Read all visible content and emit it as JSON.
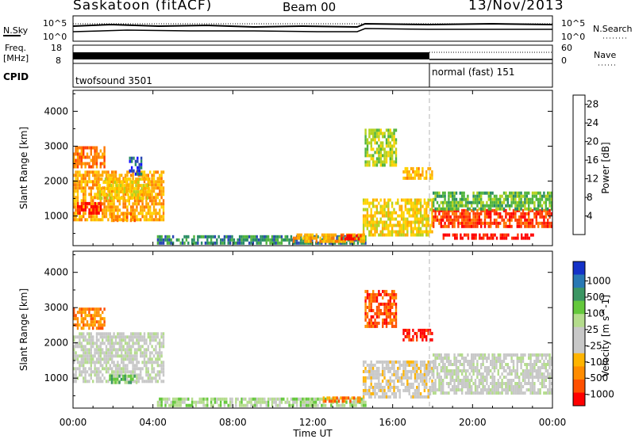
{
  "header": {
    "station": "Saskatoon (fitACF)",
    "beam": "Beam 00",
    "date": "13/Nov/2013"
  },
  "noise_panel": {
    "left_label": "N.Sky",
    "right_label": "N.Search",
    "left_ticks": [
      "10^5",
      "10^0"
    ],
    "right_ticks": [
      "10^5",
      "10^0"
    ]
  },
  "freq_panel": {
    "left_label_1": "Freq.",
    "left_label_2": "[MHz]",
    "right_label": "Nave",
    "left_ticks": [
      "18",
      "8"
    ],
    "right_ticks": [
      "60",
      "0"
    ]
  },
  "cpid_panel": {
    "label": "CPID",
    "modes": [
      {
        "name": "twofsound 3501",
        "start_hour": 0
      },
      {
        "name": "normal (fast) 151",
        "start_hour": 18
      }
    ]
  },
  "time_axis": {
    "label": "Time UT",
    "ticks": [
      "00:00",
      "04:00",
      "08:00",
      "12:00",
      "16:00",
      "20:00",
      "00:00"
    ]
  },
  "colors": {
    "ground_scatter": "#c0c0c0"
  },
  "chart_data": [
    {
      "type": "heatmap",
      "title": "",
      "xlabel": "",
      "ylabel": "Slant Range [km]",
      "x_range_hours": [
        0,
        24
      ],
      "ylim": [
        150,
        4600
      ],
      "y_ticks": [
        1000,
        2000,
        3000,
        4000
      ],
      "colorbar": {
        "label": "Power [dB]",
        "ticks": [
          "4",
          "8",
          "12",
          "16",
          "20",
          "24",
          "28"
        ],
        "colors": [
          "#1414ff",
          "#2846b4",
          "#288c64",
          "#50b43c",
          "#b4d21e",
          "#ffd200",
          "#ffaa00",
          "#ff7800",
          "#ff3c00",
          "#ff0000"
        ]
      },
      "regions": [
        {
          "t0": 0.0,
          "t1": 4.5,
          "r0": 900,
          "r1": 2300,
          "level": 6
        },
        {
          "t0": 0.2,
          "t1": 1.4,
          "r0": 1100,
          "r1": 1400,
          "level": 9
        },
        {
          "t0": 1.8,
          "t1": 3.2,
          "r0": 900,
          "r1": 1100,
          "level": 7
        },
        {
          "t0": 1.2,
          "t1": 3.8,
          "r0": 1500,
          "r1": 2100,
          "level": 5
        },
        {
          "t0": 0.0,
          "t1": 1.6,
          "r0": 2400,
          "r1": 3000,
          "level": 7
        },
        {
          "t0": 2.8,
          "t1": 3.4,
          "r0": 2200,
          "r1": 2700,
          "level": 1
        },
        {
          "t0": 4.2,
          "t1": 14.6,
          "r0": 200,
          "r1": 450,
          "level": 2
        },
        {
          "t0": 11.0,
          "t1": 14.6,
          "r0": 300,
          "r1": 500,
          "level": 6
        },
        {
          "t0": 13.4,
          "t1": 14.4,
          "r0": 350,
          "r1": 480,
          "level": 9
        },
        {
          "t0": 14.5,
          "t1": 18.0,
          "r0": 500,
          "r1": 1500,
          "level": 5
        },
        {
          "t0": 14.6,
          "t1": 16.2,
          "r0": 2500,
          "r1": 3500,
          "level": 4
        },
        {
          "t0": 16.5,
          "t1": 18.0,
          "r0": 2100,
          "r1": 2400,
          "level": 6
        },
        {
          "t0": 18.0,
          "t1": 24.0,
          "r0": 700,
          "r1": 1200,
          "level": 8
        },
        {
          "t0": 18.0,
          "t1": 24.0,
          "r0": 1200,
          "r1": 1700,
          "level": 3
        },
        {
          "t0": 18.5,
          "t1": 23.0,
          "r0": 350,
          "r1": 500,
          "level": 9
        }
      ]
    },
    {
      "type": "heatmap",
      "title": "",
      "xlabel": "Time UT",
      "ylabel": "Slant Range [km]",
      "x_range_hours": [
        0,
        24
      ],
      "ylim": [
        150,
        4600
      ],
      "y_ticks": [
        1000,
        2000,
        3000,
        4000
      ],
      "colorbar": {
        "label": "Velocity [m s^-1]",
        "ticks": [
          "1000",
          "500",
          "100",
          "25",
          "-25",
          "-100",
          "-500",
          "-1000"
        ],
        "colors": [
          "#1432c8",
          "#2878b4",
          "#3c9664",
          "#64c83c",
          "#b4dc8c",
          "#c8c8c8",
          "#c8c8c8",
          "#ffb400",
          "#ff8c00",
          "#ff5000",
          "#ff0000"
        ]
      },
      "regions": [
        {
          "t0": 0.0,
          "t1": 4.5,
          "r0": 900,
          "r1": 2300,
          "level": 5
        },
        {
          "t0": 0.0,
          "t1": 1.6,
          "r0": 2400,
          "r1": 3000,
          "level": 8
        },
        {
          "t0": 1.8,
          "t1": 3.2,
          "r0": 900,
          "r1": 1100,
          "level": 3
        },
        {
          "t0": 4.2,
          "t1": 14.6,
          "r0": 200,
          "r1": 450,
          "level": 4
        },
        {
          "t0": 12.5,
          "t1": 14.4,
          "r0": 350,
          "r1": 480,
          "level": 8
        },
        {
          "t0": 14.5,
          "t1": 18.0,
          "r0": 500,
          "r1": 1500,
          "level": 6
        },
        {
          "t0": 14.6,
          "t1": 16.2,
          "r0": 2500,
          "r1": 3500,
          "level": 9
        },
        {
          "t0": 16.5,
          "t1": 18.0,
          "r0": 2100,
          "r1": 2400,
          "level": 10
        },
        {
          "t0": 18.0,
          "t1": 24.0,
          "r0": 600,
          "r1": 1700,
          "level": 5
        }
      ]
    }
  ]
}
